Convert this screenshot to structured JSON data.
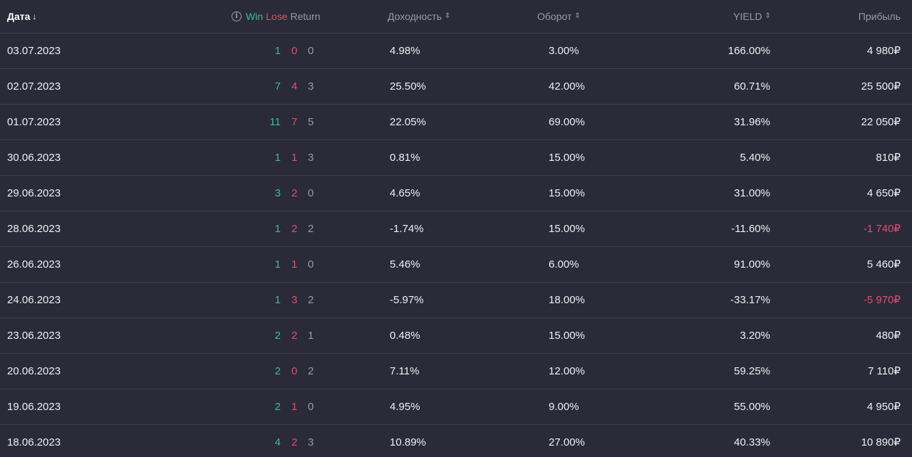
{
  "header": {
    "date": "Дата",
    "win": "Win",
    "lose": "Lose",
    "return": "Return",
    "dokhodnost": "Доходность",
    "oborot": "Оборот",
    "yield": "YIELD",
    "pribyl": "Прибыль"
  },
  "colors": {
    "background": "#2a2a38",
    "win": "#3dbf8e",
    "lose": "#e0506b",
    "return": "#9a9aaa",
    "negative": "#e0506b"
  },
  "rows": [
    {
      "date": "03.07.2023",
      "win": "1",
      "lose": "0",
      "ret": "0",
      "dokh": "4.98%",
      "oborot": "3.00%",
      "yield": "166.00%",
      "pribyl": "4 980₽",
      "negative": false
    },
    {
      "date": "02.07.2023",
      "win": "7",
      "lose": "4",
      "ret": "3",
      "dokh": "25.50%",
      "oborot": "42.00%",
      "yield": "60.71%",
      "pribyl": "25 500₽",
      "negative": false
    },
    {
      "date": "01.07.2023",
      "win": "11",
      "lose": "7",
      "ret": "5",
      "dokh": "22.05%",
      "oborot": "69.00%",
      "yield": "31.96%",
      "pribyl": "22 050₽",
      "negative": false
    },
    {
      "date": "30.06.2023",
      "win": "1",
      "lose": "1",
      "ret": "3",
      "dokh": "0.81%",
      "oborot": "15.00%",
      "yield": "5.40%",
      "pribyl": "810₽",
      "negative": false
    },
    {
      "date": "29.06.2023",
      "win": "3",
      "lose": "2",
      "ret": "0",
      "dokh": "4.65%",
      "oborot": "15.00%",
      "yield": "31.00%",
      "pribyl": "4 650₽",
      "negative": false
    },
    {
      "date": "28.06.2023",
      "win": "1",
      "lose": "2",
      "ret": "2",
      "dokh": "-1.74%",
      "oborot": "15.00%",
      "yield": "-11.60%",
      "pribyl": "-1 740₽",
      "negative": true
    },
    {
      "date": "26.06.2023",
      "win": "1",
      "lose": "1",
      "ret": "0",
      "dokh": "5.46%",
      "oborot": "6.00%",
      "yield": "91.00%",
      "pribyl": "5 460₽",
      "negative": false
    },
    {
      "date": "24.06.2023",
      "win": "1",
      "lose": "3",
      "ret": "2",
      "dokh": "-5.97%",
      "oborot": "18.00%",
      "yield": "-33.17%",
      "pribyl": "-5 970₽",
      "negative": true
    },
    {
      "date": "23.06.2023",
      "win": "2",
      "lose": "2",
      "ret": "1",
      "dokh": "0.48%",
      "oborot": "15.00%",
      "yield": "3.20%",
      "pribyl": "480₽",
      "negative": false
    },
    {
      "date": "20.06.2023",
      "win": "2",
      "lose": "0",
      "ret": "2",
      "dokh": "7.11%",
      "oborot": "12.00%",
      "yield": "59.25%",
      "pribyl": "7 110₽",
      "negative": false
    },
    {
      "date": "19.06.2023",
      "win": "2",
      "lose": "1",
      "ret": "0",
      "dokh": "4.95%",
      "oborot": "9.00%",
      "yield": "55.00%",
      "pribyl": "4 950₽",
      "negative": false
    },
    {
      "date": "18.06.2023",
      "win": "4",
      "lose": "2",
      "ret": "3",
      "dokh": "10.89%",
      "oborot": "27.00%",
      "yield": "40.33%",
      "pribyl": "10 890₽",
      "negative": false
    }
  ]
}
